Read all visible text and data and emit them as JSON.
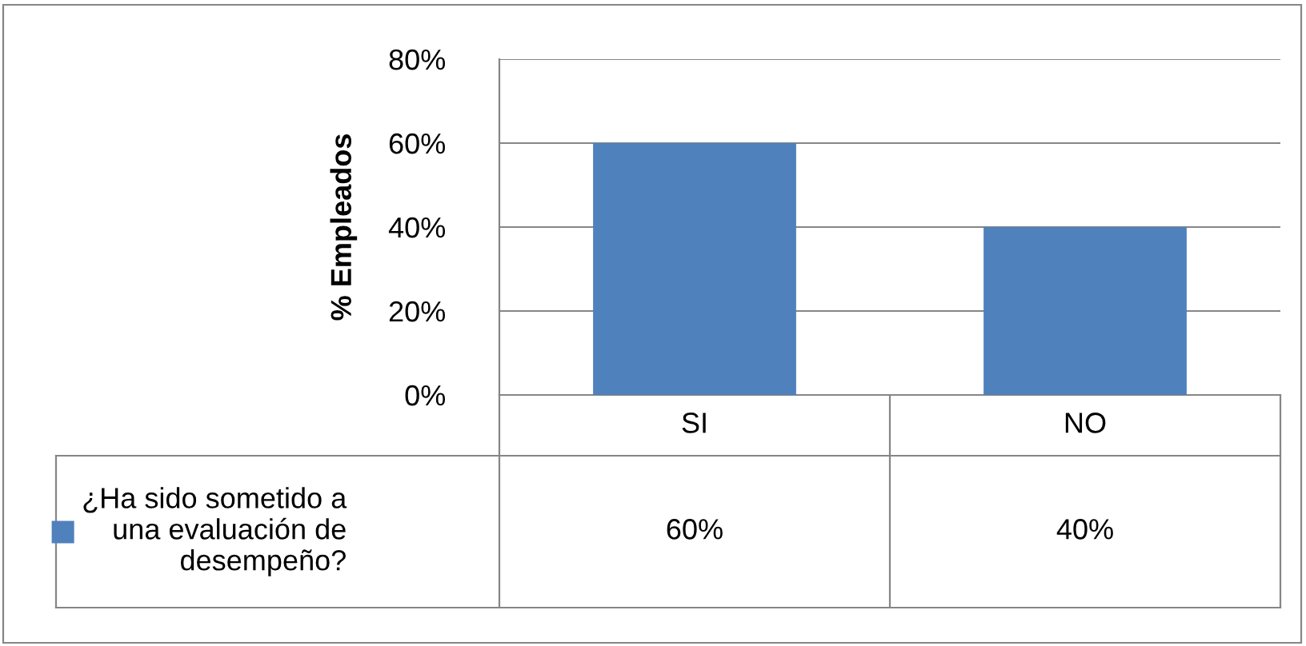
{
  "chart_data": {
    "type": "bar",
    "ylabel": "% Empleados",
    "categories": [
      "SI",
      "NO"
    ],
    "series": [
      {
        "name": "¿Ha sido sometido a\nuna evaluación de\ndesempeño?",
        "color": "#4f81bd",
        "values": [
          60,
          40
        ],
        "value_labels": [
          "60%",
          "40%"
        ]
      }
    ],
    "ylim": [
      0,
      80
    ],
    "yticks": [
      {
        "value": 0,
        "label": "0%"
      },
      {
        "value": 20,
        "label": "20%"
      },
      {
        "value": 40,
        "label": "40%"
      },
      {
        "value": 60,
        "label": "60%"
      },
      {
        "value": 80,
        "label": "80%"
      }
    ],
    "grid": "y",
    "legend": "bottom left"
  }
}
